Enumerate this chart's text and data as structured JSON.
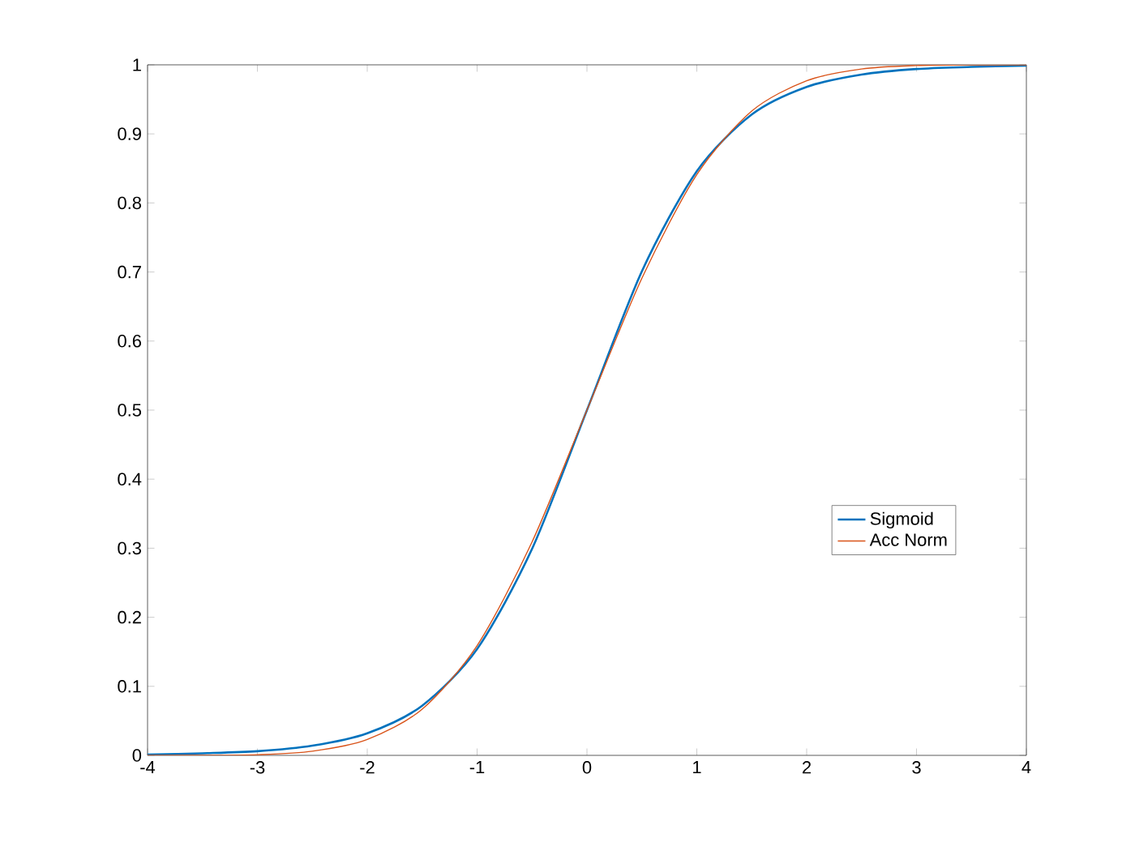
{
  "chart_data": {
    "type": "line",
    "x": [
      -4,
      -3.5,
      -3,
      -2.5,
      -2,
      -1.5,
      -1,
      -0.5,
      0,
      0.5,
      1,
      1.5,
      2,
      2.5,
      3,
      3.5,
      4
    ],
    "series": [
      {
        "name": "Sigmoid",
        "color": "#0072bd",
        "values": [
          0.001,
          0.003,
          0.006,
          0.014,
          0.032,
          0.072,
          0.154,
          0.299,
          0.5,
          0.701,
          0.846,
          0.928,
          0.968,
          0.986,
          0.994,
          0.997,
          0.999
        ]
      },
      {
        "name": "Acc Norm",
        "color": "#d95319",
        "values": [
          0.0,
          0.0,
          0.001,
          0.006,
          0.023,
          0.067,
          0.159,
          0.309,
          0.5,
          0.691,
          0.841,
          0.933,
          0.977,
          0.994,
          0.999,
          1.0,
          1.0
        ]
      }
    ],
    "xlim": [
      -4,
      4
    ],
    "ylim": [
      0,
      1
    ],
    "xticks": [
      -4,
      -3,
      -2,
      -1,
      0,
      1,
      2,
      3,
      4
    ],
    "yticks": [
      0,
      0.1,
      0.2,
      0.3,
      0.4,
      0.5,
      0.6,
      0.7,
      0.8,
      0.9,
      1
    ],
    "legend": "bottom right",
    "grid": false,
    "marker": "none",
    "line_style": "solid"
  }
}
